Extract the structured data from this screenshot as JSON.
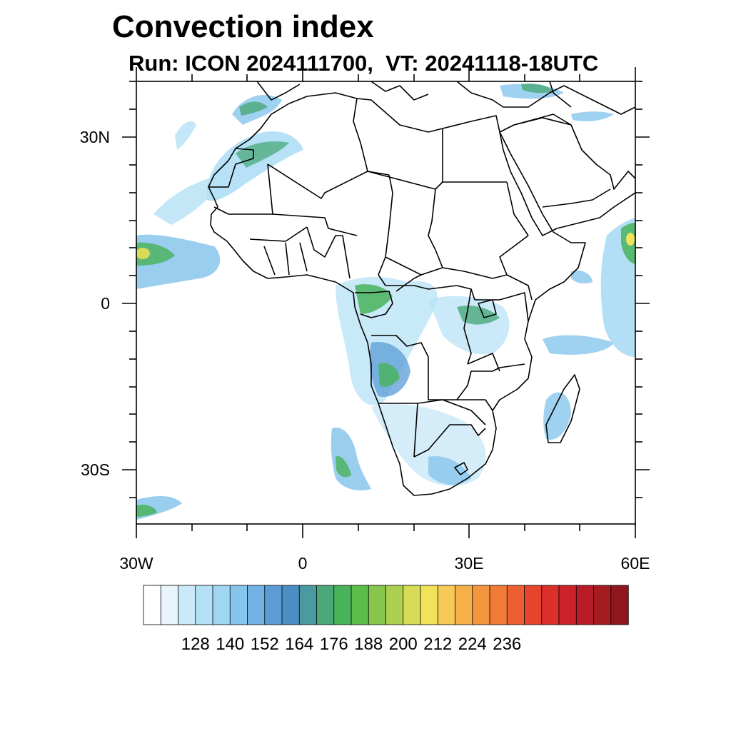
{
  "title": "Convection index",
  "subtitle": "Run: ICON 2024111700,  VT: 20241118-18UTC",
  "map": {
    "region": "Africa",
    "lon_range": [
      -30,
      60
    ],
    "lat_range": [
      -40,
      40
    ],
    "lat_labels": [
      "30N",
      "0",
      "30S"
    ],
    "lon_labels": [
      "30W",
      "0",
      "30E",
      "60E"
    ]
  },
  "colorbar": {
    "labels": [
      "128",
      "140",
      "152",
      "164",
      "176",
      "188",
      "200",
      "212",
      "224",
      "236"
    ],
    "colors": [
      "#ffffff",
      "#e8f5fc",
      "#cbe9f8",
      "#b5e1f6",
      "#9fd7f3",
      "#87c6ec",
      "#71b2e4",
      "#5b9cd6",
      "#4b8ec4",
      "#4a9aa2",
      "#4aa87a",
      "#49b35a",
      "#5bbd4a",
      "#86c64c",
      "#aed051",
      "#d8db55",
      "#f1e25a",
      "#f7c955",
      "#f6b048",
      "#f4963e",
      "#f07a36",
      "#ec5f30",
      "#e5452c",
      "#dc2e2a",
      "#cc2229",
      "#b91c26",
      "#a61a22",
      "#8e161c"
    ]
  }
}
